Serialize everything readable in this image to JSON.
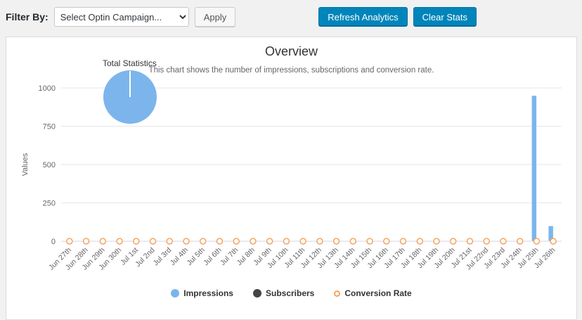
{
  "toolbar": {
    "filter_label": "Filter By:",
    "select_value": "Select Optin Campaign...",
    "apply_label": "Apply",
    "refresh_label": "Refresh Analytics",
    "clear_label": "Clear Stats"
  },
  "chart_data": {
    "type": "bar",
    "title": "Overview",
    "subtitle": "This chart shows the number of impressions, subscriptions and conversion rate.",
    "ylabel": "Values",
    "ylim": [
      0,
      1000
    ],
    "yticks": [
      0,
      250,
      500,
      750,
      1000
    ],
    "grid": true,
    "legend_position": "bottom",
    "pie": {
      "label": "Total Statistics",
      "color": "#7cb5ec"
    },
    "categories": [
      "Jun 27th",
      "Jun 28th",
      "Jun 29th",
      "Jun 30th",
      "Jul 1st",
      "Jul 2nd",
      "Jul 3rd",
      "Jul 4th",
      "Jul 5th",
      "Jul 6th",
      "Jul 7th",
      "Jul 8th",
      "Jul 9th",
      "Jul 10th",
      "Jul 11th",
      "Jul 12th",
      "Jul 13th",
      "Jul 14th",
      "Jul 15th",
      "Jul 16th",
      "Jul 17th",
      "Jul 18th",
      "Jul 19th",
      "Jul 20th",
      "Jul 21st",
      "Jul 22nd",
      "Jul 23rd",
      "Jul 24th",
      "Jul 25th",
      "Jul 26th"
    ],
    "series": [
      {
        "name": "Impressions",
        "type": "bar",
        "color": "#7cb5ec",
        "values": [
          0,
          0,
          0,
          0,
          0,
          0,
          0,
          0,
          0,
          0,
          0,
          0,
          0,
          0,
          0,
          0,
          0,
          0,
          0,
          0,
          0,
          0,
          0,
          0,
          0,
          0,
          0,
          0,
          950,
          100
        ]
      },
      {
        "name": "Subscribers",
        "type": "bar",
        "color": "#434348",
        "values": [
          0,
          0,
          0,
          0,
          0,
          0,
          0,
          0,
          0,
          0,
          0,
          0,
          0,
          0,
          0,
          0,
          0,
          0,
          0,
          0,
          0,
          0,
          0,
          0,
          0,
          0,
          0,
          0,
          0,
          0
        ]
      },
      {
        "name": "Conversion Rate",
        "type": "line",
        "color": "#f7a35c",
        "values": [
          0,
          0,
          0,
          0,
          0,
          0,
          0,
          0,
          0,
          0,
          0,
          0,
          0,
          0,
          0,
          0,
          0,
          0,
          0,
          0,
          0,
          0,
          0,
          0,
          0,
          0,
          0,
          0,
          0,
          0
        ]
      }
    ]
  }
}
